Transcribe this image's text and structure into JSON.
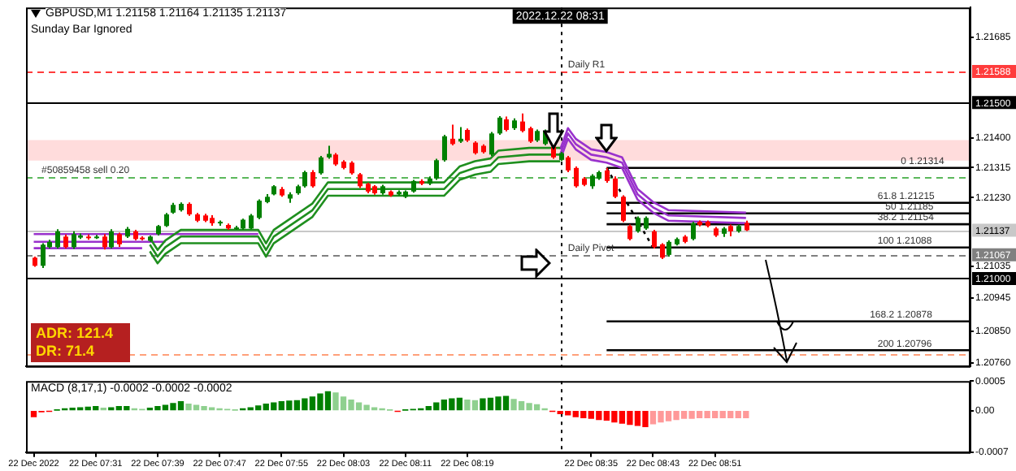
{
  "chart_data": [
    {
      "type": "candlestick",
      "title": "GBPUSD,M1  1.21158 1.21164 1.21135 1.21137",
      "subtitle": "Sunday Bar Ignored",
      "x": [
        "2022-12-22T07:23",
        "2022-12-22T07:24",
        "2022-12-22T07:25",
        "2022-12-22T07:26",
        "2022-12-22T07:27",
        "2022-12-22T07:28",
        "2022-12-22T07:29",
        "2022-12-22T07:30",
        "2022-12-22T07:31",
        "2022-12-22T07:32",
        "2022-12-22T07:33",
        "2022-12-22T07:34",
        "2022-12-22T07:35",
        "2022-12-22T07:36",
        "2022-12-22T07:37",
        "2022-12-22T07:38",
        "2022-12-22T07:39",
        "2022-12-22T07:40",
        "2022-12-22T07:41",
        "2022-12-22T07:42",
        "2022-12-22T07:43",
        "2022-12-22T07:44",
        "2022-12-22T07:45",
        "2022-12-22T07:46",
        "2022-12-22T07:47",
        "2022-12-22T07:48",
        "2022-12-22T07:49",
        "2022-12-22T07:50",
        "2022-12-22T07:51",
        "2022-12-22T07:52",
        "2022-12-22T07:53",
        "2022-12-22T07:54",
        "2022-12-22T07:55",
        "2022-12-22T07:56",
        "2022-12-22T07:57",
        "2022-12-22T07:58",
        "2022-12-22T07:59",
        "2022-12-22T08:00",
        "2022-12-22T08:01",
        "2022-12-22T08:02",
        "2022-12-22T08:03",
        "2022-12-22T08:04",
        "2022-12-22T08:05",
        "2022-12-22T08:06",
        "2022-12-22T08:07",
        "2022-12-22T08:08",
        "2022-12-22T08:09",
        "2022-12-22T08:10",
        "2022-12-22T08:11",
        "2022-12-22T08:12",
        "2022-12-22T08:13",
        "2022-12-22T08:14",
        "2022-12-22T08:15",
        "2022-12-22T08:16",
        "2022-12-22T08:17",
        "2022-12-22T08:18",
        "2022-12-22T08:19",
        "2022-12-22T08:20",
        "2022-12-22T08:21",
        "2022-12-22T08:22",
        "2022-12-22T08:23",
        "2022-12-22T08:24",
        "2022-12-22T08:25",
        "2022-12-22T08:26",
        "2022-12-22T08:27",
        "2022-12-22T08:28",
        "2022-12-22T08:29",
        "2022-12-22T08:30",
        "2022-12-22T08:31",
        "2022-12-22T08:32",
        "2022-12-22T08:33",
        "2022-12-22T08:34",
        "2022-12-22T08:35",
        "2022-12-22T08:36",
        "2022-12-22T08:37",
        "2022-12-22T08:38",
        "2022-12-22T08:39",
        "2022-12-22T08:40",
        "2022-12-22T08:41",
        "2022-12-22T08:42",
        "2022-12-22T08:43",
        "2022-12-22T08:44",
        "2022-12-22T08:45",
        "2022-12-22T08:46",
        "2022-12-22T08:47",
        "2022-12-22T08:48",
        "2022-12-22T08:49",
        "2022-12-22T08:50",
        "2022-12-22T08:51",
        "2022-12-22T08:52",
        "2022-12-22T08:53",
        "2022-12-22T08:54",
        "2022-12-22T08:55"
      ],
      "ohlc": [
        [
          1.21059,
          1.21062,
          1.21033,
          1.21036
        ],
        [
          1.21036,
          1.211,
          1.2103,
          1.21096
        ],
        [
          1.21089,
          1.2111,
          1.21085,
          1.21104
        ],
        [
          1.21089,
          1.2114,
          1.21085,
          1.21134
        ],
        [
          1.21119,
          1.21125,
          1.21085,
          1.21089
        ],
        [
          1.21089,
          1.21134,
          1.21084,
          1.21126
        ],
        [
          1.21116,
          1.21128,
          1.21112,
          1.21122
        ],
        [
          1.21119,
          1.21125,
          1.2111,
          1.21116
        ],
        [
          1.21116,
          1.21124,
          1.21112,
          1.21119
        ],
        [
          1.21119,
          1.21126,
          1.21082,
          1.21089
        ],
        [
          1.21089,
          1.2114,
          1.21085,
          1.21134
        ],
        [
          1.21126,
          1.2113,
          1.2109,
          1.21097
        ],
        [
          1.21119,
          1.21146,
          1.21115,
          1.21141
        ],
        [
          1.21134,
          1.21138,
          1.21108,
          1.21112
        ],
        [
          1.21116,
          1.2112,
          1.21108,
          1.21112
        ],
        [
          1.21107,
          1.21122,
          1.21104,
          1.21119
        ],
        [
          1.21126,
          1.21152,
          1.21122,
          1.21149
        ],
        [
          1.21149,
          1.21186,
          1.21146,
          1.21182
        ],
        [
          1.21187,
          1.21215,
          1.21184,
          1.21209
        ],
        [
          1.21194,
          1.21216,
          1.2119,
          1.21212
        ],
        [
          1.21212,
          1.21216,
          1.21178,
          1.21182
        ],
        [
          1.21182,
          1.21186,
          1.2116,
          1.21164
        ],
        [
          1.21179,
          1.21184,
          1.2116,
          1.21164
        ],
        [
          1.21172,
          1.2118,
          1.2115,
          1.21157
        ],
        [
          1.21158,
          1.21165,
          1.2115,
          1.21161
        ],
        [
          1.21152,
          1.21156,
          1.21138,
          1.21142
        ],
        [
          1.21142,
          1.2115,
          1.21138,
          1.21145
        ],
        [
          1.21142,
          1.2117,
          1.21138,
          1.21167
        ],
        [
          1.21142,
          1.21183,
          1.2114,
          1.21179
        ],
        [
          1.21172,
          1.21225,
          1.21168,
          1.21221
        ],
        [
          1.21217,
          1.2124,
          1.21214,
          1.21232
        ],
        [
          1.21239,
          1.21265,
          1.21236,
          1.21262
        ],
        [
          1.21254,
          1.2126,
          1.21232,
          1.21236
        ],
        [
          1.21227,
          1.21245,
          1.21215,
          1.21239
        ],
        [
          1.21242,
          1.21266,
          1.21238,
          1.21262
        ],
        [
          1.21262,
          1.21306,
          1.21258,
          1.21302
        ],
        [
          1.21302,
          1.21308,
          1.21258,
          1.21262
        ],
        [
          1.21299,
          1.21348,
          1.21295,
          1.21344
        ],
        [
          1.21344,
          1.21377,
          1.2134,
          1.21354
        ],
        [
          1.21352,
          1.21356,
          1.2132,
          1.21324
        ],
        [
          1.21332,
          1.21336,
          1.2131,
          1.21314
        ],
        [
          1.21329,
          1.21333,
          1.21295,
          1.21299
        ],
        [
          1.21296,
          1.213,
          1.21257,
          1.21262
        ],
        [
          1.21269,
          1.21272,
          1.21242,
          1.21247
        ],
        [
          1.21262,
          1.21265,
          1.21238,
          1.21242
        ],
        [
          1.21242,
          1.21266,
          1.21238,
          1.21262
        ],
        [
          1.21247,
          1.2125,
          1.21232,
          1.21236
        ],
        [
          1.21239,
          1.2125,
          1.21235,
          1.21246
        ],
        [
          1.21232,
          1.2125,
          1.21228,
          1.21247
        ],
        [
          1.21247,
          1.2128,
          1.21244,
          1.21277
        ],
        [
          1.21277,
          1.21282,
          1.21265,
          1.21269
        ],
        [
          1.21269,
          1.2129,
          1.21265,
          1.21284
        ],
        [
          1.21284,
          1.2134,
          1.2128,
          1.21336
        ],
        [
          1.21336,
          1.21408,
          1.21332,
          1.21404
        ],
        [
          1.21397,
          1.21437,
          1.21378,
          1.21382
        ],
        [
          1.21389,
          1.2143,
          1.21385,
          1.21397
        ],
        [
          1.21422,
          1.21426,
          1.21388,
          1.21392
        ],
        [
          1.21386,
          1.2139,
          1.21352,
          1.21356
        ],
        [
          1.21377,
          1.21381,
          1.21355,
          1.21359
        ],
        [
          1.21352,
          1.21416,
          1.21348,
          1.21412
        ],
        [
          1.21412,
          1.21461,
          1.21408,
          1.21457
        ],
        [
          1.21452,
          1.2146,
          1.21418,
          1.21422
        ],
        [
          1.21427,
          1.21455,
          1.21422,
          1.21449
        ],
        [
          1.21446,
          1.21469,
          1.21415,
          1.21419
        ],
        [
          1.21427,
          1.21431,
          1.21385,
          1.21389
        ],
        [
          1.21392,
          1.21423,
          1.21388,
          1.21419
        ],
        [
          1.21382,
          1.21423,
          1.21378,
          1.21419
        ],
        [
          1.21374,
          1.21378,
          1.2134,
          1.21344
        ],
        [
          1.21337,
          1.2136,
          1.21334,
          1.21356
        ],
        [
          1.21344,
          1.21348,
          1.21302,
          1.21307
        ],
        [
          1.21314,
          1.21318,
          1.21258,
          1.21262
        ],
        [
          1.21284,
          1.21288,
          1.21262,
          1.21266
        ],
        [
          1.21262,
          1.21296,
          1.21255,
          1.21292
        ],
        [
          1.21284,
          1.21306,
          1.2128,
          1.21302
        ],
        [
          1.21307,
          1.21314,
          1.21272,
          1.21277
        ],
        [
          1.21284,
          1.2129,
          1.21228,
          1.21232
        ],
        [
          1.21232,
          1.21236,
          1.2116,
          1.21164
        ],
        [
          1.21149,
          1.21153,
          1.21108,
          1.21112
        ],
        [
          1.21134,
          1.21176,
          1.2113,
          1.21172
        ],
        [
          1.21142,
          1.21176,
          1.21138,
          1.21172
        ],
        [
          1.21134,
          1.21138,
          1.21085,
          1.21089
        ],
        [
          1.21097,
          1.211,
          1.21055,
          1.21059
        ],
        [
          1.21067,
          1.21108,
          1.21062,
          1.21104
        ],
        [
          1.21097,
          1.21116,
          1.21094,
          1.21112
        ],
        [
          1.21119,
          1.21123,
          1.211,
          1.21104
        ],
        [
          1.21112,
          1.21161,
          1.21108,
          1.21157
        ],
        [
          1.21161,
          1.21165,
          1.21148,
          1.21152
        ],
        [
          1.21161,
          1.21165,
          1.21145,
          1.21149
        ],
        [
          1.21142,
          1.21146,
          1.21118,
          1.21122
        ],
        [
          1.21127,
          1.21146,
          1.21118,
          1.21142
        ],
        [
          1.21149,
          1.21153,
          1.2112,
          1.21134
        ],
        [
          1.21134,
          1.21153,
          1.2113,
          1.21149
        ],
        [
          1.21158,
          1.21164,
          1.21135,
          1.21137
        ]
      ],
      "colors": [
        "#ff0000",
        "#008000",
        "#008000",
        "#008000",
        "#ff0000",
        "#008000",
        "#008000",
        "#ff0000",
        "#008000",
        "#ff0000",
        "#008000",
        "#ff0000",
        "#008000",
        "#ff0000",
        "#ff0000",
        "#008000",
        "#008000",
        "#008000",
        "#008000",
        "#008000",
        "#ff0000",
        "#ff0000",
        "#ff0000",
        "#ff0000",
        "#008000",
        "#ff0000",
        "#008000",
        "#008000",
        "#008000",
        "#008000",
        "#008000",
        "#008000",
        "#ff0000",
        "#008000",
        "#008000",
        "#008000",
        "#ff0000",
        "#008000",
        "#008000",
        "#ff0000",
        "#ff0000",
        "#ff0000",
        "#ff0000",
        "#ff0000",
        "#ff0000",
        "#008000",
        "#ff0000",
        "#008000",
        "#008000",
        "#008000",
        "#ff0000",
        "#008000",
        "#008000",
        "#008000",
        "#ff0000",
        "#008000",
        "#ff0000",
        "#ff0000",
        "#ff0000",
        "#008000",
        "#008000",
        "#ff0000",
        "#008000",
        "#ff0000",
        "#ff0000",
        "#008000",
        "#008000",
        "#ff0000",
        "#008000",
        "#ff0000",
        "#ff0000",
        "#ff0000",
        "#008000",
        "#008000",
        "#ff0000",
        "#ff0000",
        "#ff0000",
        "#ff0000",
        "#008000",
        "#008000",
        "#ff0000",
        "#ff0000",
        "#008000",
        "#008000",
        "#ff0000",
        "#008000",
        "#ff0000",
        "#ff0000",
        "#ff0000",
        "#008000",
        "#ff0000",
        "#008000",
        "#ff0000"
      ],
      "series": [
        {
          "type": "line",
          "color": "#1f8f1f",
          "x": [
            "2022-12-22T07:38",
            "2022-12-22T07:39",
            "2022-12-22T07:40",
            "2022-12-22T07:42",
            "2022-12-22T07:52",
            "2022-12-22T07:53",
            "2022-12-22T07:54",
            "2022-12-22T07:56",
            "2022-12-22T07:59",
            "2022-12-22T08:01",
            "2022-12-22T08:16",
            "2022-12-22T08:18",
            "2022-12-22T08:20",
            "2022-12-22T08:22",
            "2022-12-22T08:23",
            "2022-12-22T08:27",
            "2022-12-22T08:31"
          ],
          "values": [
            1.21115,
            1.21081,
            1.21108,
            1.21138,
            1.21138,
            1.211,
            1.21138,
            1.21168,
            1.21213,
            1.21273,
            1.21273,
            1.21318,
            1.21333,
            1.21341,
            1.21363,
            1.21371,
            1.21371
          ]
        },
        {
          "type": "line",
          "color": "#1f8f1f",
          "x": [
            "2022-12-22T07:38",
            "2022-12-22T07:39",
            "2022-12-22T07:40",
            "2022-12-22T07:42",
            "2022-12-22T07:52",
            "2022-12-22T07:53",
            "2022-12-22T07:54",
            "2022-12-22T07:56",
            "2022-12-22T07:59",
            "2022-12-22T08:01",
            "2022-12-22T08:16",
            "2022-12-22T08:18",
            "2022-12-22T08:20",
            "2022-12-22T08:22",
            "2022-12-22T08:23",
            "2022-12-22T08:27",
            "2022-12-22T08:31"
          ],
          "values": [
            1.21096,
            1.21062,
            1.21089,
            1.21119,
            1.21119,
            1.21081,
            1.21119,
            1.21149,
            1.21194,
            1.21254,
            1.21254,
            1.21299,
            1.21314,
            1.21322,
            1.21344,
            1.21352,
            1.21352
          ]
        },
        {
          "type": "line",
          "color": "#1f8f1f",
          "x": [
            "2022-12-22T07:38",
            "2022-12-22T07:39",
            "2022-12-22T07:40",
            "2022-12-22T07:42",
            "2022-12-22T07:52",
            "2022-12-22T07:53",
            "2022-12-22T07:54",
            "2022-12-22T07:56",
            "2022-12-22T07:59",
            "2022-12-22T08:01",
            "2022-12-22T08:16",
            "2022-12-22T08:18",
            "2022-12-22T08:20",
            "2022-12-22T08:22",
            "2022-12-22T08:23",
            "2022-12-22T08:27",
            "2022-12-22T08:31"
          ],
          "values": [
            1.21077,
            1.21043,
            1.2107,
            1.211,
            1.211,
            1.21062,
            1.211,
            1.2113,
            1.21175,
            1.21235,
            1.21235,
            1.2128,
            1.21295,
            1.21303,
            1.21325,
            1.21333,
            1.21333
          ]
        },
        {
          "type": "line",
          "color": "#9932cc",
          "x": [
            "2022-12-22T07:23",
            "2022-12-22T07:52"
          ],
          "values": [
            1.21126,
            1.21126
          ]
        },
        {
          "type": "line",
          "color": "#9932cc",
          "x": [
            "2022-12-22T07:23",
            "2022-12-22T07:40"
          ],
          "values": [
            1.21104,
            1.21104
          ]
        },
        {
          "type": "line",
          "color": "#9932cc",
          "x": [
            "2022-12-22T07:23",
            "2022-12-22T07:37"
          ],
          "values": [
            1.21086,
            1.21086
          ]
        },
        {
          "type": "line",
          "color": "#9932cc",
          "x": [
            "2022-12-22T08:31",
            "2022-12-22T08:32",
            "2022-12-22T08:33",
            "2022-12-22T08:35",
            "2022-12-22T08:37",
            "2022-12-22T08:39",
            "2022-12-22T08:40",
            "2022-12-22T08:41",
            "2022-12-22T08:43",
            "2022-12-22T08:45",
            "2022-12-22T08:55"
          ],
          "values": [
            1.21367,
            1.21427,
            1.21397,
            1.21367,
            1.21359,
            1.21344,
            1.21299,
            1.21254,
            1.21217,
            1.21194,
            1.21187
          ]
        },
        {
          "type": "line",
          "color": "#9932cc",
          "x": [
            "2022-12-22T08:31",
            "2022-12-22T08:32",
            "2022-12-22T08:33",
            "2022-12-22T08:35",
            "2022-12-22T08:37",
            "2022-12-22T08:39",
            "2022-12-22T08:40",
            "2022-12-22T08:41",
            "2022-12-22T08:43",
            "2022-12-22T08:45",
            "2022-12-22T08:55"
          ],
          "values": [
            1.21352,
            1.21412,
            1.21382,
            1.21352,
            1.21344,
            1.21329,
            1.21284,
            1.21239,
            1.21202,
            1.21179,
            1.21172
          ]
        },
        {
          "type": "line",
          "color": "#9932cc",
          "x": [
            "2022-12-22T08:31",
            "2022-12-22T08:32",
            "2022-12-22T08:33",
            "2022-12-22T08:35",
            "2022-12-22T08:37",
            "2022-12-22T08:39",
            "2022-12-22T08:40",
            "2022-12-22T08:41",
            "2022-12-22T08:43",
            "2022-12-22T08:45",
            "2022-12-22T08:55"
          ],
          "values": [
            1.21337,
            1.21397,
            1.21367,
            1.21337,
            1.21329,
            1.21314,
            1.21269,
            1.21224,
            1.21187,
            1.21164,
            1.21157
          ]
        },
        {
          "type": "line",
          "color": "#000000",
          "line_style": "dotted",
          "x": [
            "2022-12-22T08:37",
            "2022-12-22T08:43"
          ],
          "values": [
            1.21314,
            1.21088
          ]
        },
        {
          "type": "line",
          "color": "#000000",
          "x": [
            "2022-12-22T08:37",
            "2022-12-22T09:24"
          ],
          "values": [
            1.21314,
            1.21314
          ]
        },
        {
          "type": "line",
          "color": "#000000",
          "x": [
            "2022-12-22T08:37",
            "2022-12-22T09:24"
          ],
          "values": [
            1.21215,
            1.21215
          ]
        },
        {
          "type": "line",
          "color": "#000000",
          "x": [
            "2022-12-22T08:37",
            "2022-12-22T09:24"
          ],
          "values": [
            1.21185,
            1.21185
          ]
        },
        {
          "type": "line",
          "color": "#000000",
          "x": [
            "2022-12-22T08:37",
            "2022-12-22T09:24"
          ],
          "values": [
            1.21154,
            1.21154
          ]
        },
        {
          "type": "line",
          "color": "#000000",
          "x": [
            "2022-12-22T08:37",
            "2022-12-22T09:24"
          ],
          "values": [
            1.21088,
            1.21088
          ]
        },
        {
          "type": "line",
          "color": "#000000",
          "x": [
            "2022-12-22T08:37",
            "2022-12-22T09:24"
          ],
          "values": [
            1.20878,
            1.20878
          ]
        },
        {
          "type": "line",
          "color": "#000000",
          "x": [
            "2022-12-22T08:37",
            "2022-12-22T09:24"
          ],
          "values": [
            1.20796,
            1.20796
          ]
        }
      ],
      "xlim": [
        "2022-12-22T07:22",
        "2022-12-22T09:24"
      ],
      "ylim": [
        1.20751,
        1.2177
      ],
      "yticks": [
        1.21685,
        {
          "value": 1.214,
          "label": "1.21400"
        },
        1.21315,
        {
          "value": 1.2123,
          "label": "1.21230"
        },
        1.21035,
        1.20945,
        {
          "value": 1.2085,
          "label": "1.20850"
        },
        {
          "value": 1.2076,
          "label": "1.20760"
        }
      ],
      "tick_labels": "y",
      "bands": [
        {
          "axis": "y",
          "from": 1.21335,
          "to": 1.21393,
          "color": "#ffdcdc"
        }
      ],
      "ref_lines": [
        {
          "axis": "y",
          "value": 1.21588,
          "color": "#ff3c3c",
          "line_style": "dashed",
          "label": "1.21588"
        },
        {
          "axis": "y",
          "value": 1.215,
          "color": "#000000",
          "line_style": "solid",
          "label": "1.21500"
        },
        {
          "axis": "y",
          "value": 1.21,
          "color": "#000000",
          "line_style": "solid",
          "label": "1.21000"
        },
        {
          "axis": "y",
          "value": 1.21067,
          "color": "#808080",
          "line_style": "dashed",
          "label": "1.21067"
        },
        {
          "axis": "y",
          "value": 1.2129,
          "color": "#5cb85c",
          "line_style": "dashed"
        },
        {
          "axis": "y",
          "value": 1.21137,
          "color": "#c8c8c8",
          "line_style": "solid",
          "label": "1.21137"
        },
        {
          "axis": "y",
          "value": 1.20786,
          "color": "#ffa07a",
          "line_style": "dashed"
        },
        {
          "axis": "x",
          "value": "2022-12-22T08:31",
          "color": "#000000",
          "line_style": "dotted",
          "label": "2022.12.22 08:31"
        }
      ],
      "annotations": [
        {
          "text": "Daily R1",
          "x": "2022-12-22T08:32",
          "y": 1.21588
        },
        {
          "text": "#50859458 sell 0.20",
          "x": "2022-12-22T07:24",
          "y": 1.2129
        },
        {
          "text": "Daily Pivot",
          "x": "2022-12-22T08:32",
          "y": 1.21067
        },
        {
          "text": "0 1.21314",
          "x": "2022-12-22T09:15",
          "y": 1.21314
        },
        {
          "text": "61.8 1.21215",
          "x": "2022-12-22T09:12",
          "y": 1.21215
        },
        {
          "text": "50 1.21185",
          "x": "2022-12-22T09:13",
          "y": 1.21185
        },
        {
          "text": "38.2 1.21154",
          "x": "2022-12-22T09:12",
          "y": 1.21154
        },
        {
          "text": "100 1.21088",
          "x": "2022-12-22T09:12",
          "y": 1.21088
        },
        {
          "text": "168.2 1.20878",
          "x": "2022-12-22T09:11",
          "y": 1.20878
        },
        {
          "text": "200 1.20796",
          "x": "2022-12-22T09:12",
          "y": 1.20796
        },
        "ADR: 121.4",
        "DR: 71.4"
      ]
    },
    {
      "type": "bar",
      "title": "MACD (8,17,1) -0.0002 -0.0002 -0.0002",
      "x": [
        "2022-12-22T07:23",
        "2022-12-22T07:24",
        "2022-12-22T07:25",
        "2022-12-22T07:26",
        "2022-12-22T07:27",
        "2022-12-22T07:28",
        "2022-12-22T07:29",
        "2022-12-22T07:30",
        "2022-12-22T07:31",
        "2022-12-22T07:32",
        "2022-12-22T07:33",
        "2022-12-22T07:34",
        "2022-12-22T07:35",
        "2022-12-22T07:36",
        "2022-12-22T07:37",
        "2022-12-22T07:38",
        "2022-12-22T07:39",
        "2022-12-22T07:40",
        "2022-12-22T07:41",
        "2022-12-22T07:42",
        "2022-12-22T07:43",
        "2022-12-22T07:44",
        "2022-12-22T07:45",
        "2022-12-22T07:46",
        "2022-12-22T07:47",
        "2022-12-22T07:48",
        "2022-12-22T07:49",
        "2022-12-22T07:50",
        "2022-12-22T07:51",
        "2022-12-22T07:52",
        "2022-12-22T07:53",
        "2022-12-22T07:54",
        "2022-12-22T07:55",
        "2022-12-22T07:56",
        "2022-12-22T07:57",
        "2022-12-22T07:58",
        "2022-12-22T07:59",
        "2022-12-22T08:00",
        "2022-12-22T08:01",
        "2022-12-22T08:02",
        "2022-12-22T08:03",
        "2022-12-22T08:04",
        "2022-12-22T08:05",
        "2022-12-22T08:06",
        "2022-12-22T08:07",
        "2022-12-22T08:08",
        "2022-12-22T08:09",
        "2022-12-22T08:10",
        "2022-12-22T08:11",
        "2022-12-22T08:12",
        "2022-12-22T08:13",
        "2022-12-22T08:14",
        "2022-12-22T08:15",
        "2022-12-22T08:16",
        "2022-12-22T08:17",
        "2022-12-22T08:18",
        "2022-12-22T08:19",
        "2022-12-22T08:20",
        "2022-12-22T08:21",
        "2022-12-22T08:22",
        "2022-12-22T08:23",
        "2022-12-22T08:24",
        "2022-12-22T08:25",
        "2022-12-22T08:26",
        "2022-12-22T08:27",
        "2022-12-22T08:28",
        "2022-12-22T08:29",
        "2022-12-22T08:30",
        "2022-12-22T08:31",
        "2022-12-22T08:32",
        "2022-12-22T08:33",
        "2022-12-22T08:34",
        "2022-12-22T08:35",
        "2022-12-22T08:36",
        "2022-12-22T08:37",
        "2022-12-22T08:38",
        "2022-12-22T08:39",
        "2022-12-22T08:40",
        "2022-12-22T08:41",
        "2022-12-22T08:42",
        "2022-12-22T08:43",
        "2022-12-22T08:44",
        "2022-12-22T08:45",
        "2022-12-22T08:46",
        "2022-12-22T08:47",
        "2022-12-22T08:48",
        "2022-12-22T08:49",
        "2022-12-22T08:50",
        "2022-12-22T08:51",
        "2022-12-22T08:52",
        "2022-12-22T08:53",
        "2022-12-22T08:54",
        "2022-12-22T08:55"
      ],
      "values": [
        -0.0001,
        -2e-05,
        -1e-05,
        1e-05,
        3e-05,
        4e-05,
        5e-05,
        6e-05,
        7e-05,
        4e-05,
        5e-05,
        7e-05,
        7e-05,
        3e-05,
        2e-05,
        4e-05,
        7e-05,
        9e-05,
        0.00012,
        0.00015,
        0.00011,
        9e-05,
        7e-05,
        5e-05,
        3e-05,
        2e-05,
        1e-05,
        3e-05,
        5e-05,
        8e-05,
        0.00011,
        0.00013,
        0.00015,
        0.00016,
        0.00017,
        0.0002,
        0.00023,
        0.00028,
        0.00032,
        0.0003,
        0.00023,
        0.00018,
        0.00013,
        9e-05,
        5e-05,
        3e-05,
        1e-05,
        -1e-05,
        1e-05,
        2e-05,
        3e-05,
        7e-05,
        0.00013,
        0.00018,
        0.0002,
        0.00021,
        0.00018,
        0.00017,
        0.0002,
        0.00021,
        0.00023,
        0.00024,
        0.00019,
        0.00015,
        0.00012,
        0.0001,
        3e-05,
        -1e-05,
        -5e-05,
        -7e-05,
        -0.0001,
        -0.00012,
        -0.00013,
        -0.00015,
        -0.00016,
        -0.00019,
        -0.00021,
        -0.00023,
        -0.00025,
        -0.00027,
        -0.00022,
        -0.00019,
        -0.00017,
        -0.00015,
        -0.00013,
        -0.00013,
        -0.00012,
        -0.00012,
        -0.00012,
        -0.00012,
        -0.00012,
        -0.00012,
        -0.00012
      ],
      "colors": [
        "#ff0000",
        "#ff0000",
        "#ff0000",
        "#008000",
        "#008000",
        "#008000",
        "#008000",
        "#008000",
        "#008000",
        "#8fd08f",
        "#008000",
        "#008000",
        "#008000",
        "#8fd08f",
        "#8fd08f",
        "#008000",
        "#008000",
        "#008000",
        "#008000",
        "#008000",
        "#8fd08f",
        "#8fd08f",
        "#8fd08f",
        "#8fd08f",
        "#8fd08f",
        "#8fd08f",
        "#8fd08f",
        "#008000",
        "#008000",
        "#008000",
        "#008000",
        "#008000",
        "#008000",
        "#008000",
        "#008000",
        "#008000",
        "#008000",
        "#008000",
        "#008000",
        "#8fd08f",
        "#8fd08f",
        "#8fd08f",
        "#8fd08f",
        "#8fd08f",
        "#8fd08f",
        "#8fd08f",
        "#8fd08f",
        "#ff0000",
        "#008000",
        "#008000",
        "#008000",
        "#008000",
        "#008000",
        "#008000",
        "#008000",
        "#008000",
        "#8fd08f",
        "#8fd08f",
        "#008000",
        "#008000",
        "#008000",
        "#008000",
        "#8fd08f",
        "#8fd08f",
        "#8fd08f",
        "#8fd08f",
        "#8fd08f",
        "#ff0000",
        "#ff0000",
        "#ff0000",
        "#ff0000",
        "#ff0000",
        "#ff0000",
        "#ff0000",
        "#ff0000",
        "#ff0000",
        "#ff0000",
        "#ff0000",
        "#ff0000",
        "#ff0000",
        "#ff9999",
        "#ff9999",
        "#ff9999",
        "#ff9999",
        "#ff9999",
        "#ff9999",
        "#ff9999",
        "#ff9999",
        "#ff9999",
        "#ff9999",
        "#ff9999",
        "#ff9999",
        "#ff9999"
      ],
      "xlim": [
        "2022-12-22T07:22",
        "2022-12-22T09:24"
      ],
      "xticks": [
        {
          "value": "2022-12-22T07:23",
          "label": "22 Dec 2022"
        },
        {
          "value": "2022-12-22T07:31",
          "label": "22 Dec 07:31"
        },
        {
          "value": "2022-12-22T07:39",
          "label": "22 Dec 07:39"
        },
        {
          "value": "2022-12-22T07:47",
          "label": "22 Dec 07:47"
        },
        {
          "value": "2022-12-22T07:55",
          "label": "22 Dec 07:55"
        },
        {
          "value": "2022-12-22T08:03",
          "label": "22 Dec 08:03"
        },
        {
          "value": "2022-12-22T08:11",
          "label": "22 Dec 08:11"
        },
        {
          "value": "2022-12-22T08:19",
          "label": "22 Dec 08:19"
        },
        {
          "value": "2022-12-22T08:35",
          "label": "22 Dec 08:35"
        },
        {
          "value": "2022-12-22T08:43",
          "label": "22 Dec 08:43"
        },
        {
          "value": "2022-12-22T08:51",
          "label": "22 Dec 08:51"
        }
      ],
      "ylim": [
        -0.0007,
        0.0005
      ],
      "yticks": [
        0.0005,
        {
          "value": 0,
          "label": "0.00"
        },
        -0.0007
      ],
      "ref_lines": [
        {
          "axis": "x",
          "value": "2022-12-22T08:31",
          "color": "#000000",
          "line_style": "dotted"
        }
      ]
    }
  ]
}
